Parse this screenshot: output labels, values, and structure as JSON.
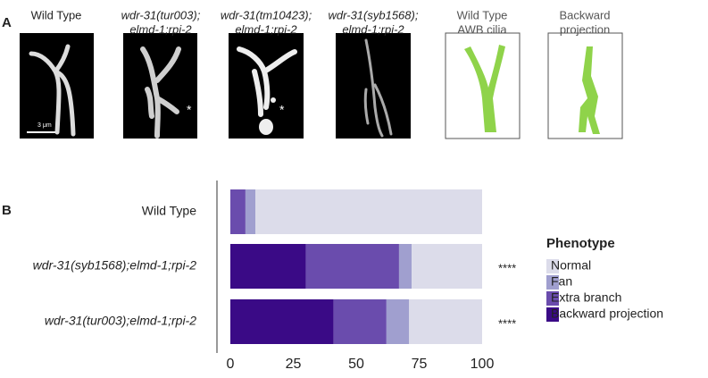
{
  "panel_a": {
    "label": "A",
    "images": [
      {
        "lines": [
          "Wild Type"
        ]
      },
      {
        "lines": [
          "wdr-31(tur003);",
          "elmd-1;rpi-2"
        ]
      },
      {
        "lines": [
          "wdr-31(tm10423);",
          "elmd-1;rpi-2"
        ]
      },
      {
        "lines": [
          "wdr-31(syb1568);",
          "elmd-1;rpi-2"
        ]
      },
      {
        "lines": [
          "Wild Type",
          "AWB cilia"
        ]
      },
      {
        "lines": [
          "Backward",
          "projection"
        ]
      }
    ],
    "scale_bar": "3 μm",
    "asterisk": "*"
  },
  "panel_b_label": "B",
  "chart_data": {
    "type": "bar",
    "orientation": "horizontal",
    "stacked": true,
    "categories": [
      "Wild Type",
      "wdr-31(syb1568);elmd-1;rpi-2",
      "wdr-31(tur003);elmd-1;rpi-2"
    ],
    "series": [
      {
        "name": "Backward projection",
        "color": "#3a0a86",
        "values": [
          0,
          30,
          41
        ]
      },
      {
        "name": "Extra branch",
        "color": "#6a4cad",
        "values": [
          6,
          37,
          21
        ]
      },
      {
        "name": "Fan",
        "color": "#a09fcf",
        "values": [
          4,
          5,
          9
        ]
      },
      {
        "name": "Normal",
        "color": "#dcdcea",
        "values": [
          90,
          28,
          29
        ]
      }
    ],
    "significance": [
      null,
      "****",
      "****"
    ],
    "xlim": [
      0,
      100
    ],
    "xticks": [
      0,
      25,
      50,
      75,
      100
    ],
    "legend_title": "Phenotype",
    "legend_position": "right",
    "grid": false
  }
}
